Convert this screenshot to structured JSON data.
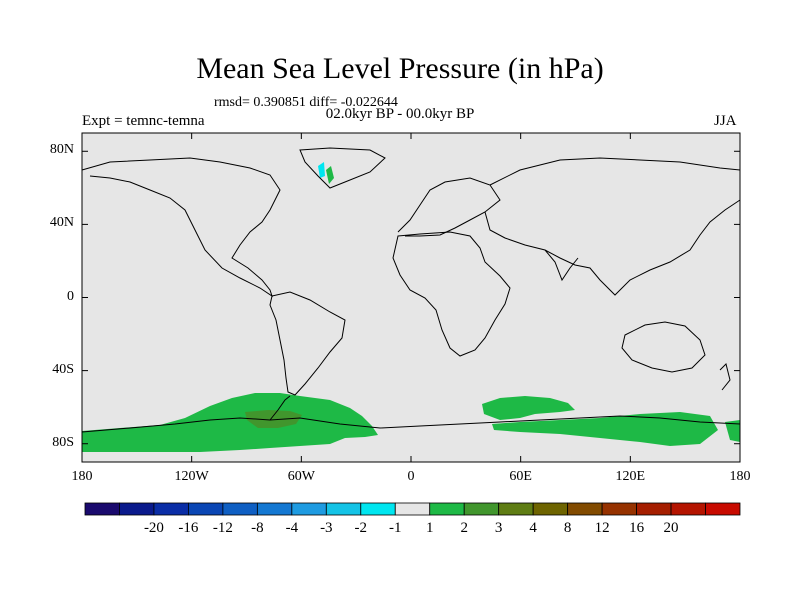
{
  "title": "Mean Sea Level Pressure (in hPa)",
  "subtitle_stats": "rmsd= 0.390851 diff= -0.022644",
  "subtitle_period": "02.0kyr BP - 00.0kyr BP",
  "left_label": "Expt = temnc-temna",
  "right_label": "JJA",
  "map": {
    "ocean_color": "#e6e6e6",
    "coast_color": "#000000",
    "y_ticks": [
      "80N",
      "40N",
      "0",
      "40S",
      "80S"
    ],
    "x_ticks": [
      "180",
      "120W",
      "60W",
      "0",
      "60E",
      "120E",
      "180"
    ]
  },
  "colorbar": {
    "colors": [
      "#1a0a6e",
      "#0a1a8c",
      "#0a2da6",
      "#0a46b4",
      "#0f5fc3",
      "#1478d2",
      "#1e9be1",
      "#14c3e6",
      "#00e6f0",
      "#e6e6e6",
      "#1eb946",
      "#41962d",
      "#5f7d14",
      "#6e6400",
      "#824b00",
      "#963200",
      "#a51e00",
      "#b41400",
      "#c80a00"
    ],
    "labels": [
      "-20",
      "-16",
      "-12",
      "-8",
      "-4",
      "-3",
      "-2",
      "-1",
      "1",
      "2",
      "3",
      "4",
      "8",
      "12",
      "16",
      "20"
    ]
  }
}
